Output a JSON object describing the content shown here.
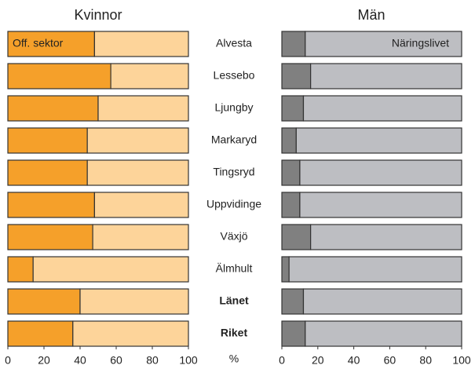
{
  "chart_data": [
    {
      "type": "stacked-bar-horizontal",
      "title": "Kvinnor",
      "xlabel": "%",
      "categories": [
        "Alvesta",
        "Lessebo",
        "Ljungby",
        "Markaryd",
        "Tingsryd",
        "Uppvidinge",
        "Växjö",
        "Älmhult",
        "Länet",
        "Riket"
      ],
      "series": [
        {
          "name": "Off. sektor",
          "color": "#f5a02a",
          "values": [
            48,
            57,
            50,
            44,
            44,
            48,
            47,
            14,
            40,
            36
          ]
        },
        {
          "color": "#fdd49a",
          "values": [
            52,
            43,
            50,
            56,
            56,
            52,
            53,
            86,
            60,
            64
          ]
        }
      ],
      "xlim": [
        0,
        100
      ],
      "xticks": [
        0,
        20,
        40,
        60,
        80,
        100
      ]
    },
    {
      "type": "stacked-bar-horizontal",
      "title": "Män",
      "series": [
        {
          "color": "#808080",
          "values": [
            13,
            16,
            12,
            8,
            10,
            10,
            16,
            4,
            12,
            13
          ]
        },
        {
          "name": "Näringslivet",
          "color": "#bdbec2",
          "values": [
            87,
            84,
            88,
            92,
            90,
            90,
            84,
            96,
            88,
            87
          ]
        }
      ],
      "xlim": [
        0,
        100
      ],
      "xticks": [
        0,
        20,
        40,
        60,
        80,
        100
      ]
    }
  ]
}
